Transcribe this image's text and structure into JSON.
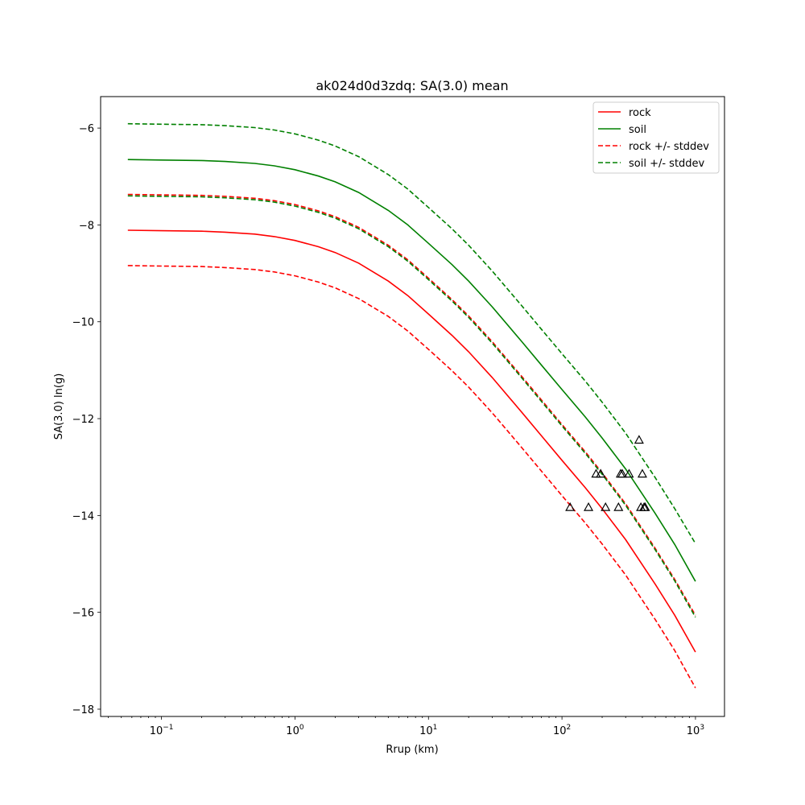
{
  "chart_data": {
    "type": "line",
    "title": "ak024d0d3zdq: SA(3.0) mean",
    "xlabel": "Rrup (km)",
    "ylabel": "SA(3.0) ln(g)",
    "xscale": "log",
    "xlim": [
      0.035,
      1650
    ],
    "ylim": [
      -18.15,
      -5.35
    ],
    "grid": false,
    "legend_position": "top-right",
    "x_ticks": [
      {
        "value": 0.1,
        "base": "10",
        "exp": "−1"
      },
      {
        "value": 1,
        "base": "10",
        "exp": "0"
      },
      {
        "value": 10,
        "base": "10",
        "exp": "1"
      },
      {
        "value": 100,
        "base": "10",
        "exp": "2"
      },
      {
        "value": 1000,
        "base": "10",
        "exp": "3"
      }
    ],
    "y_ticks": [
      {
        "value": -6,
        "label": "−6"
      },
      {
        "value": -8,
        "label": "−8"
      },
      {
        "value": -10,
        "label": "−10"
      },
      {
        "value": -12,
        "label": "−12"
      },
      {
        "value": -14,
        "label": "−14"
      },
      {
        "value": -16,
        "label": "−16"
      },
      {
        "value": -18,
        "label": "−18"
      }
    ],
    "x": [
      0.056,
      0.1,
      0.2,
      0.3,
      0.5,
      0.7,
      1,
      1.5,
      2,
      3,
      5,
      7,
      10,
      15,
      20,
      30,
      50,
      70,
      100,
      150,
      200,
      300,
      500,
      700,
      1000
    ],
    "series": [
      {
        "name": "rock",
        "color": "#ff0000",
        "dashed": false,
        "values": [
          -8.11,
          -8.12,
          -8.13,
          -8.15,
          -8.19,
          -8.24,
          -8.32,
          -8.45,
          -8.57,
          -8.79,
          -9.16,
          -9.46,
          -9.84,
          -10.28,
          -10.62,
          -11.15,
          -11.87,
          -12.35,
          -12.86,
          -13.43,
          -13.86,
          -14.5,
          -15.42,
          -16.06,
          -16.82
        ]
      },
      {
        "name": "soil",
        "color": "#008000",
        "dashed": false,
        "values": [
          -6.65,
          -6.66,
          -6.67,
          -6.69,
          -6.73,
          -6.78,
          -6.86,
          -6.99,
          -7.11,
          -7.33,
          -7.7,
          -8.0,
          -8.38,
          -8.82,
          -9.16,
          -9.69,
          -10.41,
          -10.89,
          -11.4,
          -11.97,
          -12.4,
          -13.04,
          -13.96,
          -14.6,
          -15.36
        ]
      },
      {
        "name": "rock +/- stddev",
        "color": "#ff0000",
        "dashed": true,
        "values": [
          -7.37,
          -7.38,
          -7.39,
          -7.41,
          -7.45,
          -7.5,
          -7.58,
          -7.71,
          -7.83,
          -8.05,
          -8.42,
          -8.72,
          -9.1,
          -9.54,
          -9.88,
          -10.41,
          -11.13,
          -11.61,
          -12.12,
          -12.69,
          -13.12,
          -13.76,
          -14.68,
          -15.32,
          -16.06
        ]
      },
      {
        "name": "",
        "color": "#ff0000",
        "dashed": true,
        "values": [
          -8.84,
          -8.85,
          -8.86,
          -8.88,
          -8.92,
          -8.97,
          -9.05,
          -9.18,
          -9.3,
          -9.52,
          -9.89,
          -10.19,
          -10.57,
          -11.01,
          -11.35,
          -11.88,
          -12.6,
          -13.08,
          -13.59,
          -14.16,
          -14.59,
          -15.23,
          -16.15,
          -16.79,
          -17.56
        ]
      },
      {
        "name": "soil +/- stddev",
        "color": "#008000",
        "dashed": true,
        "values": [
          -5.91,
          -5.92,
          -5.93,
          -5.95,
          -5.99,
          -6.04,
          -6.12,
          -6.25,
          -6.37,
          -6.59,
          -6.96,
          -7.26,
          -7.64,
          -8.08,
          -8.42,
          -8.95,
          -9.67,
          -10.15,
          -10.66,
          -11.23,
          -11.66,
          -12.3,
          -13.22,
          -13.86,
          -14.58
        ]
      },
      {
        "name": "",
        "color": "#008000",
        "dashed": true,
        "values": [
          -7.4,
          -7.41,
          -7.42,
          -7.44,
          -7.48,
          -7.53,
          -7.61,
          -7.74,
          -7.86,
          -8.08,
          -8.45,
          -8.75,
          -9.13,
          -9.57,
          -9.91,
          -10.44,
          -11.16,
          -11.64,
          -12.15,
          -12.72,
          -13.15,
          -13.79,
          -14.71,
          -15.35,
          -16.1
        ]
      }
    ],
    "observations": [
      {
        "x": 115,
        "y": -13.83
      },
      {
        "x": 158,
        "y": -13.83
      },
      {
        "x": 212,
        "y": -13.83
      },
      {
        "x": 265,
        "y": -13.83
      },
      {
        "x": 390,
        "y": -13.83
      },
      {
        "x": 412,
        "y": -13.83
      },
      {
        "x": 420,
        "y": -13.83
      },
      {
        "x": 180,
        "y": -13.14
      },
      {
        "x": 195,
        "y": -13.14
      },
      {
        "x": 275,
        "y": -13.14
      },
      {
        "x": 283,
        "y": -13.14
      },
      {
        "x": 318,
        "y": -13.14
      },
      {
        "x": 400,
        "y": -13.14
      },
      {
        "x": 378,
        "y": -12.44
      }
    ]
  }
}
